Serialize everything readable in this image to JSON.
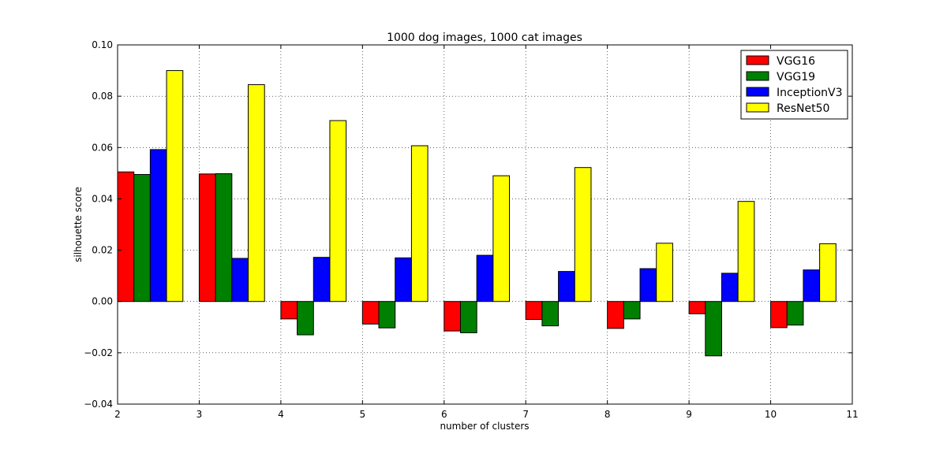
{
  "chart_data": {
    "type": "bar",
    "title": "1000 dog images, 1000 cat images",
    "xlabel": "number of clusters",
    "ylabel": "silhouette score",
    "x": [
      2,
      3,
      4,
      5,
      6,
      7,
      8,
      9,
      10
    ],
    "xlim": [
      2,
      11
    ],
    "ylim": [
      -0.04,
      0.1
    ],
    "xticks": [
      "2",
      "3",
      "4",
      "5",
      "6",
      "7",
      "8",
      "9",
      "10",
      "11"
    ],
    "yticks": [
      "0.10",
      "0.08",
      "0.06",
      "0.04",
      "0.02",
      "0.00",
      "−0.02",
      "−0.04"
    ],
    "grid": true,
    "legend_position": "top-right",
    "series": [
      {
        "name": "VGG16",
        "color": "#ff0000",
        "values": [
          0.0505,
          0.0497,
          -0.0068,
          -0.0088,
          -0.0115,
          -0.007,
          -0.0105,
          -0.0048,
          -0.0102
        ]
      },
      {
        "name": "VGG19",
        "color": "#008000",
        "values": [
          0.0495,
          0.0498,
          -0.013,
          -0.0103,
          -0.0122,
          -0.0095,
          -0.0068,
          -0.0212,
          -0.0092
        ]
      },
      {
        "name": "InceptionV3",
        "color": "#0000ff",
        "values": [
          0.0592,
          0.0168,
          0.0172,
          0.017,
          0.018,
          0.0117,
          0.0128,
          0.011,
          0.0123
        ]
      },
      {
        "name": "ResNet50",
        "color": "#ffff00",
        "values": [
          0.09,
          0.0845,
          0.0705,
          0.0607,
          0.049,
          0.0522,
          0.0227,
          0.039,
          0.0225
        ]
      }
    ]
  }
}
